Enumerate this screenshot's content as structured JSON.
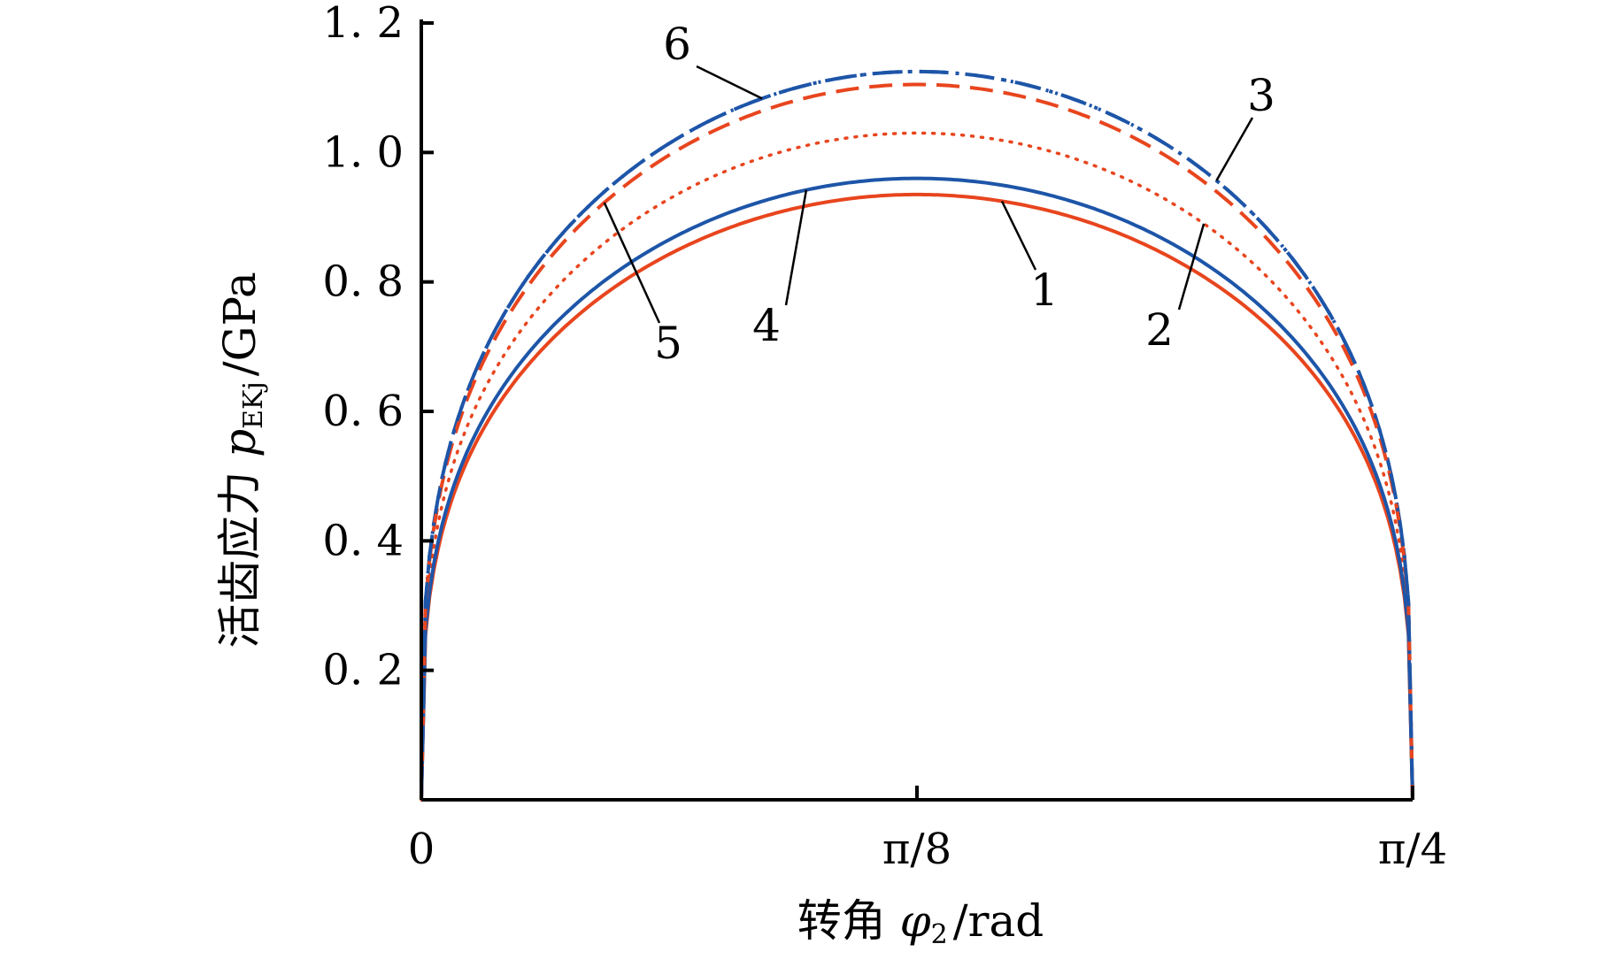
{
  "chart_data": {
    "type": "line",
    "xlabel": "转角 φ₂/rad",
    "ylabel": "活齿应力 p_EKj/GPa",
    "ylabel_parts": {
      "main": "活齿应力 ",
      "symbol": "p",
      "subscript": "EKj",
      "unit": "/GPa"
    },
    "xlabel_parts": {
      "main": "转角 ",
      "symbol": "φ",
      "subscript": "2",
      "unit": "/rad"
    },
    "xlim": [
      0,
      0.7854
    ],
    "ylim": [
      0,
      1.2
    ],
    "x_ticks": [
      {
        "value": 0,
        "label": "0"
      },
      {
        "value": 0.3927,
        "label": "π/8"
      },
      {
        "value": 0.7854,
        "label": "π/4"
      }
    ],
    "y_ticks": [
      {
        "value": 0.2,
        "label": "0. 2"
      },
      {
        "value": 0.4,
        "label": "0. 4"
      },
      {
        "value": 0.6,
        "label": "0. 6"
      },
      {
        "value": 0.8,
        "label": "0. 8"
      },
      {
        "value": 1.0,
        "label": "1. 0"
      },
      {
        "value": 1.2,
        "label": "1. 2"
      }
    ],
    "grid": false,
    "colors": {
      "red": "#e8451e",
      "blue": "#1d55a8",
      "axis": "#000000"
    },
    "series": [
      {
        "label": "1",
        "color": "#e8451e",
        "style": "solid",
        "x": [
          0,
          0.02,
          0.05,
          0.1,
          0.15,
          0.2,
          0.25,
          0.3,
          0.35,
          0.3927,
          0.43,
          0.48,
          0.53,
          0.58,
          0.63,
          0.68,
          0.73,
          0.76,
          0.78,
          0.7854
        ],
        "peak": 0.935
      },
      {
        "label": "2",
        "color": "#e8451e",
        "style": "dotted",
        "x": [
          0,
          0.02,
          0.05,
          0.1,
          0.15,
          0.2,
          0.25,
          0.3,
          0.35,
          0.3927,
          0.43,
          0.48,
          0.53,
          0.58,
          0.63,
          0.68,
          0.73,
          0.76,
          0.78,
          0.7854
        ],
        "peak": 1.03
      },
      {
        "label": "3",
        "color": "#1d55a8",
        "style": "dash-dot-dot",
        "x": [
          0,
          0.02,
          0.05,
          0.1,
          0.15,
          0.2,
          0.25,
          0.3,
          0.35,
          0.3927,
          0.43,
          0.48,
          0.53,
          0.58,
          0.63,
          0.68,
          0.73,
          0.76,
          0.78,
          0.7854
        ],
        "peak": 1.125
      },
      {
        "label": "4",
        "color": "#1d55a8",
        "style": "solid",
        "x": [
          0,
          0.02,
          0.05,
          0.1,
          0.15,
          0.2,
          0.25,
          0.3,
          0.35,
          0.3927,
          0.43,
          0.48,
          0.53,
          0.58,
          0.63,
          0.68,
          0.73,
          0.76,
          0.78,
          0.7854
        ],
        "peak": 0.96
      },
      {
        "label": "5",
        "color": "#e8451e",
        "style": "dashed",
        "x": [
          0,
          0.02,
          0.05,
          0.1,
          0.15,
          0.2,
          0.25,
          0.3,
          0.35,
          0.3927,
          0.43,
          0.48,
          0.53,
          0.58,
          0.63,
          0.68,
          0.73,
          0.76,
          0.78,
          0.7854
        ],
        "peak": 1.105
      },
      {
        "label": "6",
        "color": "#1d55a8",
        "style": "dash-dot",
        "x": [
          0,
          0.02,
          0.05,
          0.1,
          0.15,
          0.2,
          0.25,
          0.3,
          0.35,
          0.3927,
          0.43,
          0.48,
          0.53,
          0.58,
          0.63,
          0.68,
          0.73,
          0.76,
          0.78,
          0.7854
        ],
        "peak": 1.125
      }
    ]
  }
}
